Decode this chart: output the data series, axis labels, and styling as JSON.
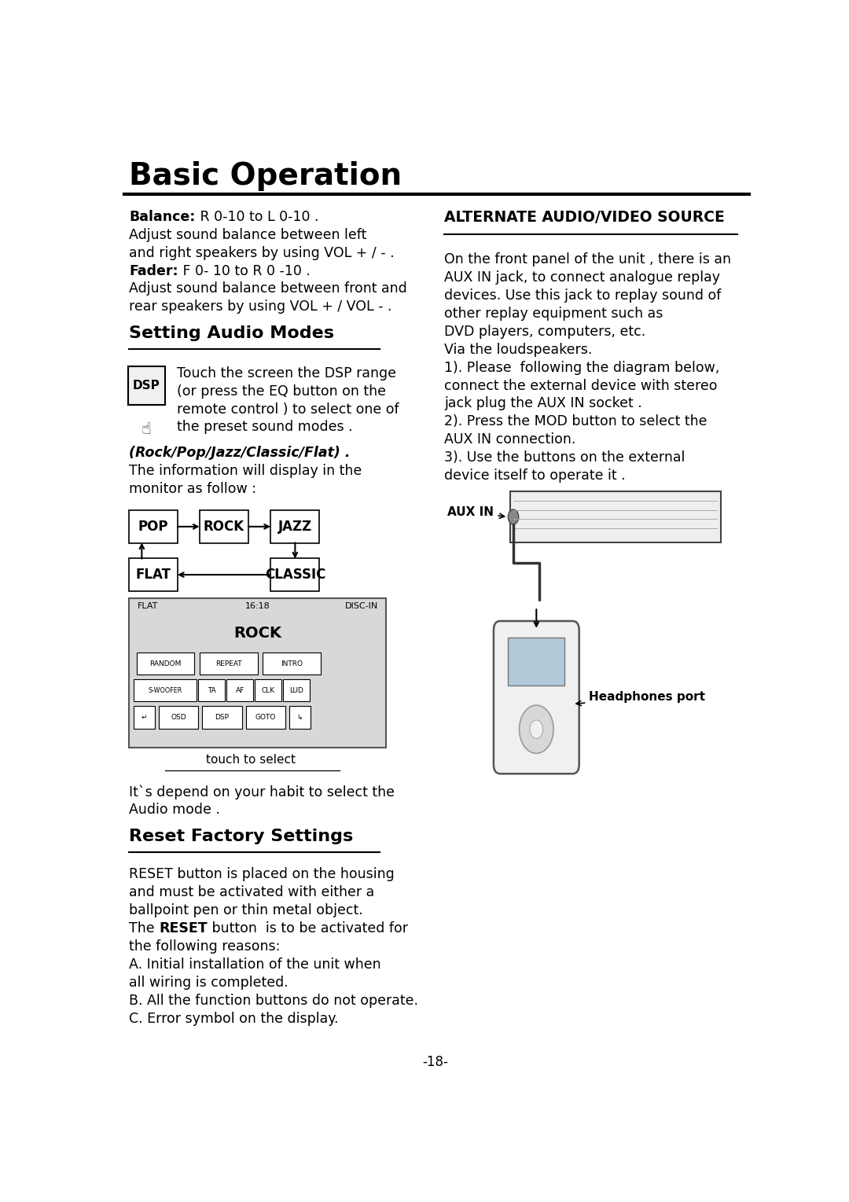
{
  "title": "Basic Operation",
  "bg_color": "#ffffff",
  "text_color": "#000000",
  "page_number": "-18-",
  "intro_text": [
    {
      "bold": "Balance:",
      "normal": " R 0-10 to L 0-10 ."
    },
    {
      "bold": "",
      "normal": "Adjust sound balance between left"
    },
    {
      "bold": "",
      "normal": "and right speakers by using VOL + / - ."
    },
    {
      "bold": "Fader:",
      "normal": " F 0- 10 to R 0 -10 ."
    },
    {
      "bold": "",
      "normal": "Adjust sound balance between front and"
    },
    {
      "bold": "",
      "normal": "rear speakers by using VOL + / VOL - ."
    }
  ],
  "section1_title": "Setting Audio Modes",
  "section1_text": [
    "Touch the screen the DSP range",
    "(or press the EQ button on the",
    "remote control ) to select one of",
    "the preset sound modes ."
  ],
  "modes_italic": "(Rock/Pop/Jazz/Classic/Flat) .",
  "modes_text_line1": "The information will display in the",
  "modes_text_line2": "monitor as follow :",
  "display_header_left": "FLAT",
  "display_header_center": "16:18",
  "display_header_right": "DISC-IN",
  "display_main": "ROCK",
  "display_buttons_row1": [
    "RANDOM",
    "REPEAT",
    "INTRO"
  ],
  "display_buttons_row2": [
    "S-WOOFER",
    "TA",
    "AF",
    "CLK",
    "LUD"
  ],
  "display_buttons_row3": [
    "↵",
    "OSD",
    "DSP",
    "GOTO",
    "↳"
  ],
  "touch_label": "touch to select",
  "section1_footer_line1": "It`s depend on your habit to select the",
  "section1_footer_line2": "Audio mode .",
  "section2_title": "Reset Factory Settings",
  "section2_text": [
    {
      "bold": "",
      "normal": "RESET button is placed on the housing"
    },
    {
      "bold": "",
      "normal": "and must be activated with either a"
    },
    {
      "bold": "",
      "normal": "ballpoint pen or thin metal object."
    },
    {
      "bold": "RESET",
      "pre": "The ",
      "post": " button  is to be activated for"
    },
    {
      "bold": "",
      "normal": "the following reasons:"
    },
    {
      "bold": "",
      "normal": "A. Initial installation of the unit when"
    },
    {
      "bold": "",
      "normal": "all wiring is completed."
    },
    {
      "bold": "",
      "normal": "B. All the function buttons do not operate."
    },
    {
      "bold": "",
      "normal": "C. Error symbol on the display."
    }
  ],
  "right_section_title": "ALTERNATE AUDIO/VIDEO SOURCE",
  "right_section_text": [
    "On the front panel of the unit , there is an",
    "AUX IN jack, to connect analogue replay",
    "devices. Use this jack to replay sound of",
    "other replay equipment such as",
    "DVD players, computers, etc.",
    "Via the loudspeakers.",
    "1). Please  following the diagram below,",
    "connect the external device with stereo",
    "jack plug the AUX IN socket .",
    "2). Press the MOD button to select the",
    "AUX IN connection.",
    "3). Use the buttons on the external",
    "device itself to operate it ."
  ],
  "aux_in_label": "AUX IN",
  "headphones_label": "Headphones port"
}
